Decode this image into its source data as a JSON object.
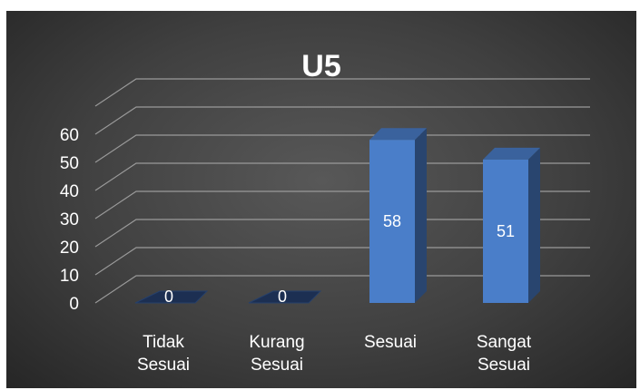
{
  "chart_data": {
    "type": "bar",
    "title": "U5",
    "categories": [
      [
        "Tidak",
        "Sesuai"
      ],
      [
        "Kurang",
        "Sesuai"
      ],
      [
        "Sesuai"
      ],
      [
        "Sangat",
        "Sesuai"
      ]
    ],
    "values": [
      0,
      0,
      58,
      51
    ],
    "ylim": [
      0,
      60
    ],
    "yticks": [
      0,
      10,
      20,
      30,
      40,
      50,
      60
    ],
    "grid": true,
    "data_labels": true,
    "bar_color": "#4A7EC9"
  }
}
